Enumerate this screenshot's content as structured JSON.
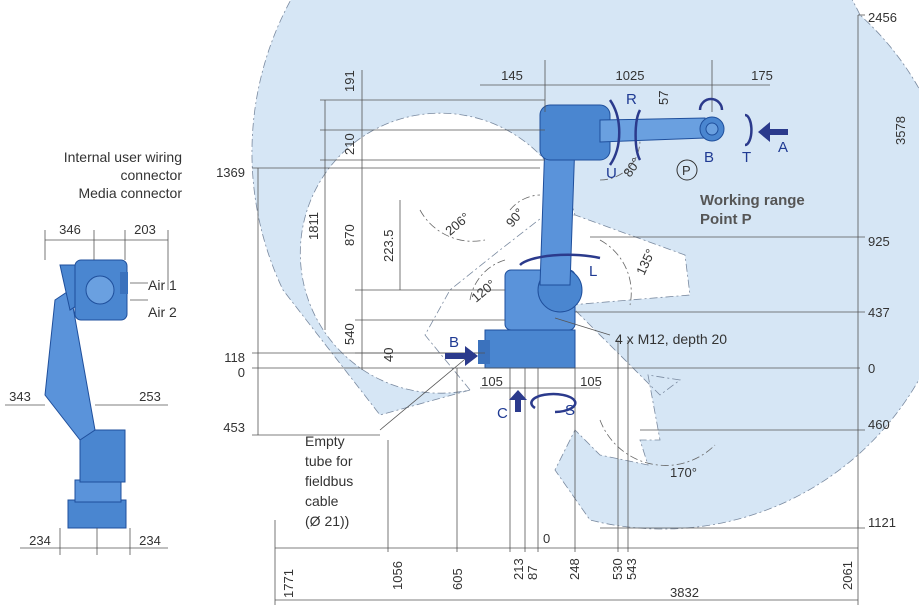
{
  "side_view": {
    "label_wiring_line1": "Internal user wiring",
    "label_wiring_line2": "connector",
    "label_media": "Media connector",
    "label_air1": "Air 1",
    "label_air2": "Air 2",
    "dim_346": "346",
    "dim_203": "203",
    "dim_343": "343",
    "dim_253": "253",
    "dim_234_left": "234",
    "dim_234_right": "234"
  },
  "main_view": {
    "top_dims": {
      "d145": "145",
      "d1025": "1025",
      "d175": "175",
      "d57": "57"
    },
    "vert_dims": {
      "d191": "191",
      "d210": "210",
      "d870": "870",
      "d1811": "1811",
      "d223_5": "223.5",
      "d540": "540",
      "d40": "40"
    },
    "left_levels": {
      "l1369": "1369",
      "l118": "118",
      "l0": "0",
      "l453": "453"
    },
    "right_levels": {
      "r2456": "2456",
      "r3578": "3578",
      "r925": "925",
      "r437": "437",
      "r0": "0",
      "r460": "460",
      "r1121": "1121"
    },
    "angles": {
      "a206": "206°",
      "a90": "90°",
      "a80": "80°",
      "a135": "135°",
      "a120": "120°",
      "a170": "170°"
    },
    "axes": {
      "R": "R",
      "U": "U",
      "B_axis": "B",
      "T": "T",
      "A": "A",
      "L": "L",
      "B_arrow": "B",
      "C": "C",
      "S": "S",
      "P": "P"
    },
    "working_range_line1": "Working range",
    "working_range_line2": "Point P",
    "mount_note": "4 x M12, depth 20",
    "d105_left": "105",
    "d105_right": "105",
    "tube_note": [
      "Empty",
      "tube for",
      "fieldbus",
      "cable",
      "(Ø 21))"
    ],
    "bottom_dims": {
      "b1771": "1771",
      "b1056": "1056",
      "b605": "605",
      "b213": "213",
      "b87": "87",
      "b0": "0",
      "b248": "248",
      "b530": "530",
      "b543": "543",
      "b2061": "2061",
      "b3832": "3832"
    }
  },
  "colors": {
    "range_fill": "#d6e6f5",
    "robot": "#4a86d0",
    "robot_dark": "#1f4f9c",
    "arrow": "#2b3a8c"
  }
}
